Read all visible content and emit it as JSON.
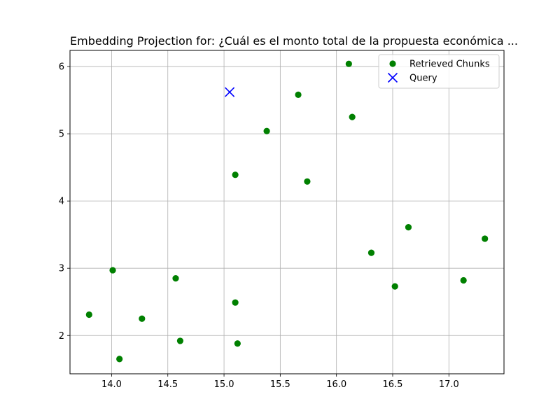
{
  "chart_data": {
    "type": "scatter",
    "title": "Embedding Projection for: ¿Cuál es el monto total de la propuesta económica ...",
    "xlabel": "",
    "ylabel": "",
    "xlim": [
      13.63,
      17.49
    ],
    "ylim": [
      1.43,
      6.24
    ],
    "xticks": [
      "14.0",
      "14.5",
      "15.0",
      "15.5",
      "16.0",
      "16.5",
      "17.0"
    ],
    "yticks": [
      "2",
      "3",
      "4",
      "5",
      "6"
    ],
    "grid": true,
    "legend_position": "top-right",
    "series": [
      {
        "name": "Retrieved Chunks",
        "marker": "circle",
        "color": "#008000",
        "points": [
          [
            16.11,
            6.04
          ],
          [
            15.66,
            5.58
          ],
          [
            16.14,
            5.25
          ],
          [
            15.38,
            5.04
          ],
          [
            15.1,
            4.39
          ],
          [
            15.74,
            4.29
          ],
          [
            16.64,
            3.61
          ],
          [
            17.32,
            3.44
          ],
          [
            16.31,
            3.23
          ],
          [
            14.01,
            2.97
          ],
          [
            14.57,
            2.85
          ],
          [
            16.52,
            2.73
          ],
          [
            17.13,
            2.82
          ],
          [
            15.1,
            2.49
          ],
          [
            13.8,
            2.31
          ],
          [
            14.27,
            2.25
          ],
          [
            14.61,
            1.92
          ],
          [
            15.12,
            1.88
          ],
          [
            14.07,
            1.65
          ]
        ]
      },
      {
        "name": "Query",
        "marker": "x",
        "color": "#0000ff",
        "points": [
          [
            15.05,
            5.62
          ]
        ]
      }
    ]
  }
}
